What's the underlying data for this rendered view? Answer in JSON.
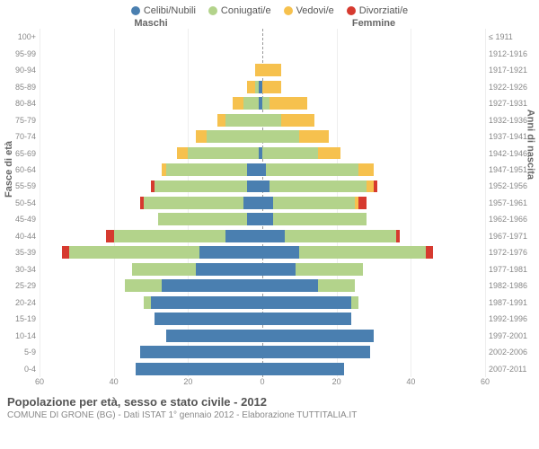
{
  "legend": [
    {
      "label": "Celibi/Nubili",
      "color": "#4a7fb0"
    },
    {
      "label": "Coniugati/e",
      "color": "#b3d38b"
    },
    {
      "label": "Vedovi/e",
      "color": "#f6c14e"
    },
    {
      "label": "Divorziati/e",
      "color": "#d63a2f"
    }
  ],
  "header_male": "Maschi",
  "header_female": "Femmine",
  "axis_left_title": "Fasce di età",
  "axis_right_title": "Anni di nascita",
  "age_labels": [
    "100+",
    "95-99",
    "90-94",
    "85-89",
    "80-84",
    "75-79",
    "70-74",
    "65-69",
    "60-64",
    "55-59",
    "50-54",
    "45-49",
    "40-44",
    "35-39",
    "30-34",
    "25-29",
    "20-24",
    "15-19",
    "10-14",
    "5-9",
    "0-4"
  ],
  "birth_labels": [
    "≤ 1911",
    "1912-1916",
    "1917-1921",
    "1922-1926",
    "1927-1931",
    "1932-1936",
    "1937-1941",
    "1942-1946",
    "1947-1951",
    "1952-1956",
    "1957-1961",
    "1962-1966",
    "1967-1971",
    "1972-1976",
    "1977-1981",
    "1982-1986",
    "1987-1991",
    "1992-1996",
    "1997-2001",
    "2002-2006",
    "2007-2011"
  ],
  "x_max": 60,
  "x_ticks": [
    60,
    40,
    20,
    0,
    20,
    40,
    60
  ],
  "rows": [
    {
      "m": [
        0,
        0,
        0,
        0
      ],
      "f": [
        0,
        0,
        0,
        0
      ]
    },
    {
      "m": [
        0,
        0,
        0,
        0
      ],
      "f": [
        0,
        0,
        0,
        0
      ]
    },
    {
      "m": [
        0,
        0,
        2,
        0
      ],
      "f": [
        0,
        0,
        5,
        0
      ]
    },
    {
      "m": [
        1,
        1,
        2,
        0
      ],
      "f": [
        0,
        0,
        5,
        0
      ]
    },
    {
      "m": [
        1,
        4,
        3,
        0
      ],
      "f": [
        0,
        2,
        10,
        0
      ]
    },
    {
      "m": [
        0,
        10,
        2,
        0
      ],
      "f": [
        0,
        5,
        9,
        0
      ]
    },
    {
      "m": [
        0,
        15,
        3,
        0
      ],
      "f": [
        0,
        10,
        8,
        0
      ]
    },
    {
      "m": [
        1,
        19,
        3,
        0
      ],
      "f": [
        0,
        15,
        6,
        0
      ]
    },
    {
      "m": [
        4,
        22,
        1,
        0
      ],
      "f": [
        1,
        25,
        4,
        0
      ]
    },
    {
      "m": [
        4,
        25,
        0,
        1
      ],
      "f": [
        2,
        26,
        2,
        1
      ]
    },
    {
      "m": [
        5,
        27,
        0,
        1
      ],
      "f": [
        3,
        22,
        1,
        2
      ]
    },
    {
      "m": [
        4,
        24,
        0,
        0
      ],
      "f": [
        3,
        25,
        0,
        0
      ]
    },
    {
      "m": [
        10,
        30,
        0,
        2
      ],
      "f": [
        6,
        30,
        0,
        1
      ]
    },
    {
      "m": [
        17,
        35,
        0,
        2
      ],
      "f": [
        10,
        34,
        0,
        2
      ]
    },
    {
      "m": [
        18,
        17,
        0,
        0
      ],
      "f": [
        9,
        18,
        0,
        0
      ]
    },
    {
      "m": [
        27,
        10,
        0,
        0
      ],
      "f": [
        15,
        10,
        0,
        0
      ]
    },
    {
      "m": [
        30,
        2,
        0,
        0
      ],
      "f": [
        24,
        2,
        0,
        0
      ]
    },
    {
      "m": [
        29,
        0,
        0,
        0
      ],
      "f": [
        24,
        0,
        0,
        0
      ]
    },
    {
      "m": [
        26,
        0,
        0,
        0
      ],
      "f": [
        30,
        0,
        0,
        0
      ]
    },
    {
      "m": [
        33,
        0,
        0,
        0
      ],
      "f": [
        29,
        0,
        0,
        0
      ]
    },
    {
      "m": [
        34,
        0,
        0,
        0
      ],
      "f": [
        22,
        0,
        0,
        0
      ]
    }
  ],
  "title": "Popolazione per età, sesso e stato civile - 2012",
  "subtitle": "COMUNE DI GRONE (BG) - Dati ISTAT 1° gennaio 2012 - Elaborazione TUTTITALIA.IT",
  "colors": {
    "bg": "#ffffff",
    "grid": "#eeeeee",
    "text": "#666666"
  }
}
